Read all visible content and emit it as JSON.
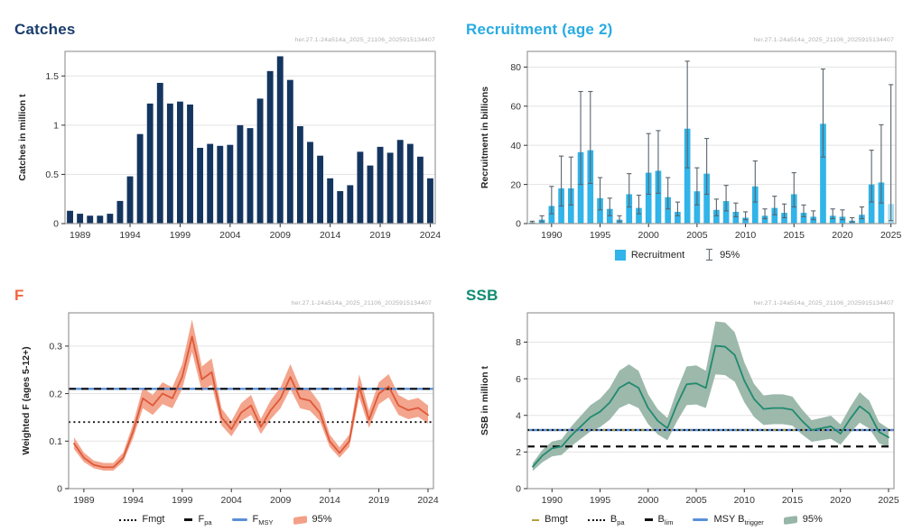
{
  "watermark": "her.27.1-24a514a_2025_21106_2025915134407",
  "colors": {
    "catches_title": "#1b3e6d",
    "recruitment_title": "#29abe2",
    "f_title": "#f2643f",
    "ssb_title": "#0f8b70",
    "navy_bar": "#14355f",
    "recruit_bar": "#30b4e9",
    "recruit_bar_forecast": "#a9def4",
    "errorbar": "#5a646c",
    "f_line": "#dd5a3a",
    "f_ribbon": "#f3a087",
    "ssb_line": "#218a6f",
    "ssb_ribbon": "#97b5a8",
    "ref_blue": "#5b8fd8",
    "ref_olive": "#b3a13c",
    "ref_black": "#111111"
  },
  "panels": {
    "catches": {
      "title": "Catches"
    },
    "recruitment": {
      "title": "Recruitment (age 2)"
    },
    "f": {
      "title": "F"
    },
    "ssb": {
      "title": "SSB"
    }
  },
  "chart_data": [
    {
      "id": "catches",
      "type": "bar",
      "title": "Catches",
      "ylabel": "Catches in million t",
      "bar_color": "#14355f",
      "years": [
        1988,
        1989,
        1990,
        1991,
        1992,
        1993,
        1994,
        1995,
        1996,
        1997,
        1998,
        1999,
        2000,
        2001,
        2002,
        2003,
        2004,
        2005,
        2006,
        2007,
        2008,
        2009,
        2010,
        2011,
        2012,
        2013,
        2014,
        2015,
        2016,
        2017,
        2018,
        2019,
        2020,
        2021,
        2022,
        2023,
        2024
      ],
      "values": [
        0.13,
        0.1,
        0.08,
        0.08,
        0.1,
        0.23,
        0.48,
        0.91,
        1.22,
        1.43,
        1.22,
        1.24,
        1.21,
        0.77,
        0.81,
        0.79,
        0.8,
        1.0,
        0.97,
        1.27,
        1.55,
        1.7,
        1.46,
        0.99,
        0.83,
        0.69,
        0.46,
        0.33,
        0.39,
        0.73,
        0.59,
        0.78,
        0.72,
        0.85,
        0.81,
        0.68,
        0.46
      ],
      "ylim": [
        0,
        1.75
      ],
      "yticks": [
        0,
        0.5,
        1,
        1.5
      ],
      "ytick_labels": [
        "0",
        "0.5",
        "1",
        "1.5"
      ],
      "xticks": [
        1989,
        1994,
        1999,
        2004,
        2009,
        2014,
        2019,
        2024
      ],
      "grid": true,
      "legend": []
    },
    {
      "id": "recruitment",
      "type": "bar",
      "title": "Recruitment (age 2)",
      "ylabel": "Recruitment in billions",
      "bar_color": "#30b4e9",
      "forecast_last": true,
      "forecast_bar_color": "#a9def4",
      "errorbar_color": "#5a646c",
      "years": [
        1988,
        1989,
        1990,
        1991,
        1992,
        1993,
        1994,
        1995,
        1996,
        1997,
        1998,
        1999,
        2000,
        2001,
        2002,
        2003,
        2004,
        2005,
        2006,
        2007,
        2008,
        2009,
        2010,
        2011,
        2012,
        2013,
        2014,
        2015,
        2016,
        2017,
        2018,
        2019,
        2020,
        2021,
        2022,
        2023,
        2024,
        2025
      ],
      "values": [
        0.6,
        2,
        9,
        18,
        18,
        36.5,
        37.5,
        13,
        7.5,
        2,
        15,
        8,
        26,
        27,
        13.5,
        6,
        48.5,
        16.5,
        25.5,
        7,
        11.5,
        6,
        3,
        19,
        4,
        8,
        5.5,
        15,
        5.5,
        3.5,
        51,
        4,
        3.5,
        1.5,
        4.5,
        20,
        21,
        10
      ],
      "err_low": [
        0.3,
        1,
        5,
        9,
        9.5,
        20,
        20.5,
        7,
        4,
        1,
        8.5,
        5,
        15,
        15.5,
        7.5,
        4,
        28.5,
        9.5,
        15,
        4,
        6.5,
        3.5,
        2,
        11,
        2.5,
        4.5,
        3,
        8.5,
        3.5,
        2,
        34,
        2.5,
        2,
        0.8,
        2.5,
        11,
        10.5,
        1.5
      ],
      "err_high": [
        1.2,
        4,
        19,
        34.5,
        34,
        67.5,
        67.5,
        23.5,
        13,
        4,
        25.5,
        14.5,
        46,
        47.5,
        23.5,
        11,
        83,
        28.5,
        43.5,
        12.5,
        19.5,
        10.5,
        6,
        32,
        7.5,
        14,
        10,
        26,
        9.5,
        6.5,
        79,
        7.5,
        7,
        3,
        8.5,
        37.5,
        50.5,
        71
      ],
      "ylim": [
        0,
        88
      ],
      "yticks": [
        0,
        20,
        40,
        60,
        80
      ],
      "ytick_labels": [
        "0",
        "20",
        "40",
        "60",
        "80"
      ],
      "xticks": [
        1990,
        1995,
        2000,
        2005,
        2010,
        2015,
        2020,
        2025
      ],
      "grid": true,
      "legend": [
        {
          "label": "Recruitment"
        },
        {
          "label": "95%"
        }
      ]
    },
    {
      "id": "f",
      "type": "line",
      "title": "F",
      "ylabel": "Weighted F (ages 5-12+)",
      "line_color": "#dd5a3a",
      "ribbon_color": "#f3a087",
      "years": [
        1988,
        1989,
        1990,
        1991,
        1992,
        1993,
        1994,
        1995,
        1996,
        1997,
        1998,
        1999,
        2000,
        2001,
        2002,
        2003,
        2004,
        2005,
        2006,
        2007,
        2008,
        2009,
        2010,
        2011,
        2012,
        2013,
        2014,
        2015,
        2016,
        2017,
        2018,
        2019,
        2020,
        2021,
        2022,
        2023,
        2024
      ],
      "values": [
        0.095,
        0.065,
        0.05,
        0.045,
        0.045,
        0.065,
        0.12,
        0.19,
        0.175,
        0.2,
        0.19,
        0.235,
        0.32,
        0.23,
        0.245,
        0.15,
        0.125,
        0.16,
        0.175,
        0.13,
        0.165,
        0.19,
        0.235,
        0.19,
        0.185,
        0.16,
        0.1,
        0.075,
        0.1,
        0.215,
        0.145,
        0.2,
        0.215,
        0.175,
        0.165,
        0.17,
        0.155
      ],
      "low": [
        0.083,
        0.056,
        0.043,
        0.038,
        0.038,
        0.056,
        0.106,
        0.169,
        0.155,
        0.178,
        0.169,
        0.21,
        0.288,
        0.205,
        0.219,
        0.133,
        0.11,
        0.142,
        0.155,
        0.115,
        0.146,
        0.169,
        0.21,
        0.169,
        0.164,
        0.142,
        0.088,
        0.065,
        0.088,
        0.192,
        0.128,
        0.178,
        0.192,
        0.155,
        0.146,
        0.151,
        0.137
      ],
      "high": [
        0.108,
        0.076,
        0.059,
        0.054,
        0.054,
        0.076,
        0.136,
        0.213,
        0.197,
        0.224,
        0.213,
        0.262,
        0.356,
        0.257,
        0.274,
        0.169,
        0.142,
        0.18,
        0.197,
        0.147,
        0.186,
        0.213,
        0.262,
        0.213,
        0.208,
        0.18,
        0.114,
        0.087,
        0.114,
        0.241,
        0.164,
        0.224,
        0.241,
        0.197,
        0.186,
        0.191,
        0.175
      ],
      "ref_lines": [
        {
          "label": "FMSY",
          "value": 0.21,
          "style": "solid",
          "color": "#5b8fd8"
        },
        {
          "label": "Fpa",
          "value": 0.21,
          "style": "dashed",
          "color": "#111111"
        },
        {
          "label": "Fmgt",
          "value": 0.14,
          "style": "dotted",
          "color": "#111111"
        }
      ],
      "ylim": [
        0,
        0.37
      ],
      "yticks": [
        0,
        0.1,
        0.2,
        0.3
      ],
      "ytick_labels": [
        "0",
        "0.1",
        "0.2",
        "0.3"
      ],
      "xticks": [
        1989,
        1994,
        1999,
        2004,
        2009,
        2014,
        2019,
        2024
      ],
      "grid": true,
      "legend": [
        {
          "main": "Fmgt",
          "sub": ""
        },
        {
          "main": "F",
          "sub": "pa"
        },
        {
          "main": "F",
          "sub": "MSY"
        },
        {
          "main": "95%",
          "sub": ""
        }
      ]
    },
    {
      "id": "ssb",
      "type": "line",
      "title": "SSB",
      "ylabel": "SSB in million t",
      "line_color": "#218a6f",
      "ribbon_color": "#97b5a8",
      "years": [
        1988,
        1989,
        1990,
        1991,
        1992,
        1993,
        1994,
        1995,
        1996,
        1997,
        1998,
        1999,
        2000,
        2001,
        2002,
        2003,
        2004,
        2005,
        2006,
        2007,
        2008,
        2009,
        2010,
        2011,
        2012,
        2013,
        2014,
        2015,
        2016,
        2017,
        2018,
        2019,
        2020,
        2021,
        2022,
        2023,
        2024,
        2025
      ],
      "values": [
        1.2,
        1.8,
        2.2,
        2.3,
        2.9,
        3.4,
        3.9,
        4.2,
        4.7,
        5.5,
        5.8,
        5.5,
        4.4,
        3.7,
        3.3,
        4.6,
        5.7,
        5.75,
        5.5,
        7.8,
        7.75,
        7.3,
        5.9,
        4.9,
        4.35,
        4.4,
        4.4,
        4.3,
        3.7,
        3.2,
        3.3,
        3.4,
        3.0,
        3.8,
        4.5,
        4.1,
        3.1,
        2.8
      ],
      "low": [
        0.96,
        1.44,
        1.76,
        1.84,
        2.32,
        2.72,
        3.12,
        3.36,
        3.76,
        4.4,
        4.64,
        4.4,
        3.52,
        2.96,
        2.64,
        3.68,
        4.56,
        4.6,
        4.4,
        6.24,
        6.2,
        5.84,
        4.72,
        3.92,
        3.48,
        3.52,
        3.52,
        3.44,
        2.96,
        2.56,
        2.64,
        2.72,
        2.4,
        3.04,
        3.6,
        3.28,
        2.48,
        2.24
      ],
      "high": [
        1.4,
        2.11,
        2.57,
        2.69,
        3.39,
        3.98,
        4.56,
        4.91,
        5.5,
        6.44,
        6.79,
        6.44,
        5.15,
        4.33,
        3.86,
        5.38,
        6.67,
        6.73,
        6.44,
        9.13,
        9.07,
        8.54,
        6.9,
        5.73,
        5.09,
        5.15,
        5.15,
        5.03,
        4.33,
        3.74,
        3.86,
        3.98,
        3.51,
        4.45,
        5.27,
        4.8,
        3.63,
        3.28
      ],
      "ref_lines": [
        {
          "label": "MSY Btrigger",
          "value": 3.2,
          "style": "solid",
          "color": "#5b8fd8"
        },
        {
          "label": "Bmgt",
          "value": 3.2,
          "style": "olive-dash",
          "color": "#b3a13c"
        },
        {
          "label": "Bpa",
          "value": 3.2,
          "style": "dotted",
          "color": "#111111"
        },
        {
          "label": "Blim",
          "value": 2.3,
          "style": "dashed",
          "color": "#111111"
        }
      ],
      "ylim": [
        0,
        9.6
      ],
      "yticks": [
        0,
        2,
        4,
        6,
        8
      ],
      "ytick_labels": [
        "0",
        "2",
        "4",
        "6",
        "8"
      ],
      "xticks": [
        1990,
        1995,
        2000,
        2005,
        2010,
        2015,
        2020,
        2025
      ],
      "grid": true,
      "legend": [
        {
          "main": "Bmgt",
          "sub": ""
        },
        {
          "main": "B",
          "sub": "pa"
        },
        {
          "main": "B",
          "sub": "lim"
        },
        {
          "main": "MSY B",
          "sub": "trigger"
        },
        {
          "main": "95%",
          "sub": ""
        }
      ]
    }
  ]
}
